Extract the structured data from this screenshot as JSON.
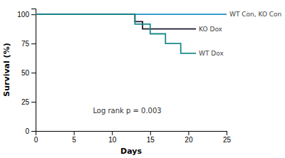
{
  "chart_data": {
    "type": "line",
    "xlabel": "Days",
    "ylabel": "Survival (%)",
    "xlim": [
      0,
      25
    ],
    "ylim": [
      0,
      105
    ],
    "xticks": [
      0,
      5,
      10,
      15,
      20,
      25
    ],
    "yticks": [
      0,
      25,
      50,
      75,
      100
    ],
    "grid": false,
    "annotations": [
      {
        "text": "Log rank p = 0.003",
        "x": 7.5,
        "y": 15
      }
    ],
    "series": [
      {
        "name": "WT Con, KO Con",
        "color": "#1E8FCC",
        "x": [
          0,
          25
        ],
        "values": [
          100,
          100
        ]
      },
      {
        "name": "KO Dox",
        "color": "#1a1a2e",
        "x": [
          0,
          13,
          13,
          14,
          14,
          21
        ],
        "values": [
          100,
          100,
          93.75,
          93.75,
          87.5,
          87.5
        ]
      },
      {
        "name": "WT Dox",
        "color": "#1a8a8a",
        "x": [
          0,
          13,
          13,
          15,
          15,
          17,
          17,
          19,
          19,
          21
        ],
        "values": [
          100,
          100,
          91.67,
          91.67,
          83.33,
          83.33,
          75.0,
          75.0,
          66.67,
          66.67
        ]
      }
    ]
  }
}
